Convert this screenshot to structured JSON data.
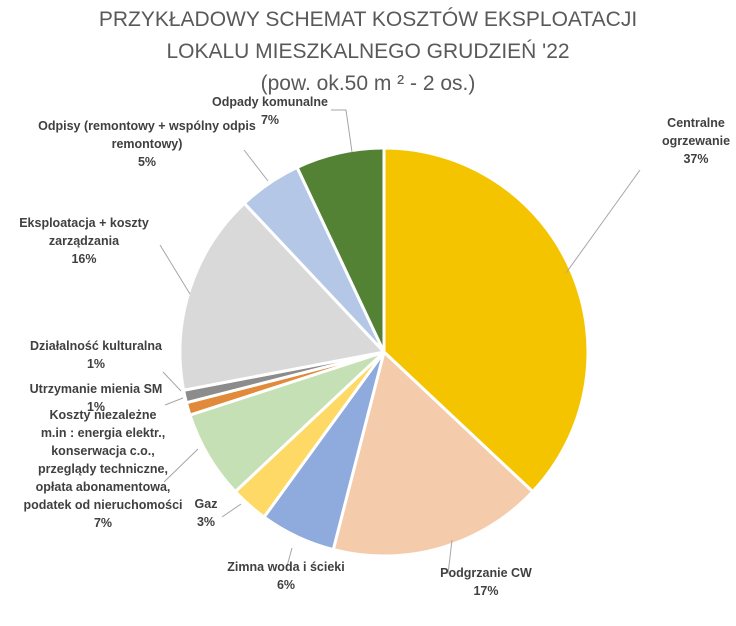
{
  "chart_data": {
    "type": "pie",
    "title_lines": [
      "PRZYKŁADOWY SCHEMAT KOSZTÓW EKSPLOATACJI",
      "LOKALU MIESZKALNEGO GRUDZIEŃ '22",
      "(pow. ok.50 m ² - 2 os.)"
    ],
    "slices": [
      {
        "label_lines": [
          "Centralne",
          "ogrzewanie"
        ],
        "value": 37,
        "pct_label": "37%",
        "color": "#F5C400"
      },
      {
        "label_lines": [
          "Podgrzanie CW"
        ],
        "value": 17,
        "pct_label": "17%",
        "color": "#F4CCAC"
      },
      {
        "label_lines": [
          "Zimna woda i ścieki"
        ],
        "value": 6,
        "pct_label": "6%",
        "color": "#8FAADC"
      },
      {
        "label_lines": [
          "Gaz"
        ],
        "value": 3,
        "pct_label": "3%",
        "color": "#FFD966"
      },
      {
        "label_lines": [
          "Koszty niezależne",
          "m.in : energia elektr.,",
          "konserwacja c.o.,",
          "przeglądy techniczne,",
          "opłata abonamentowa,",
          "podatek od nieruchomości"
        ],
        "value": 7,
        "pct_label": "7%",
        "color": "#C5E0B4"
      },
      {
        "label_lines": [
          "Utrzymanie mienia SM"
        ],
        "value": 1,
        "pct_label": "1%",
        "color": "#E18A3A"
      },
      {
        "label_lines": [
          "Działalność kulturalna"
        ],
        "value": 1,
        "pct_label": "1%",
        "color": "#8C8C8C"
      },
      {
        "label_lines": [
          "Eksploatacja + koszty",
          "zarządzania"
        ],
        "value": 16,
        "pct_label": "16%",
        "color": "#D9D9D9"
      },
      {
        "label_lines": [
          "Odpisy (remontowy + wspólny odpis",
          "remontowy)"
        ],
        "value": 5,
        "pct_label": "5%",
        "color": "#B4C7E7"
      },
      {
        "label_lines": [
          "Odpady komunalne"
        ],
        "value": 7,
        "pct_label": "7%",
        "color": "#548235"
      }
    ],
    "legend": "none (data labels on leader lines)"
  }
}
